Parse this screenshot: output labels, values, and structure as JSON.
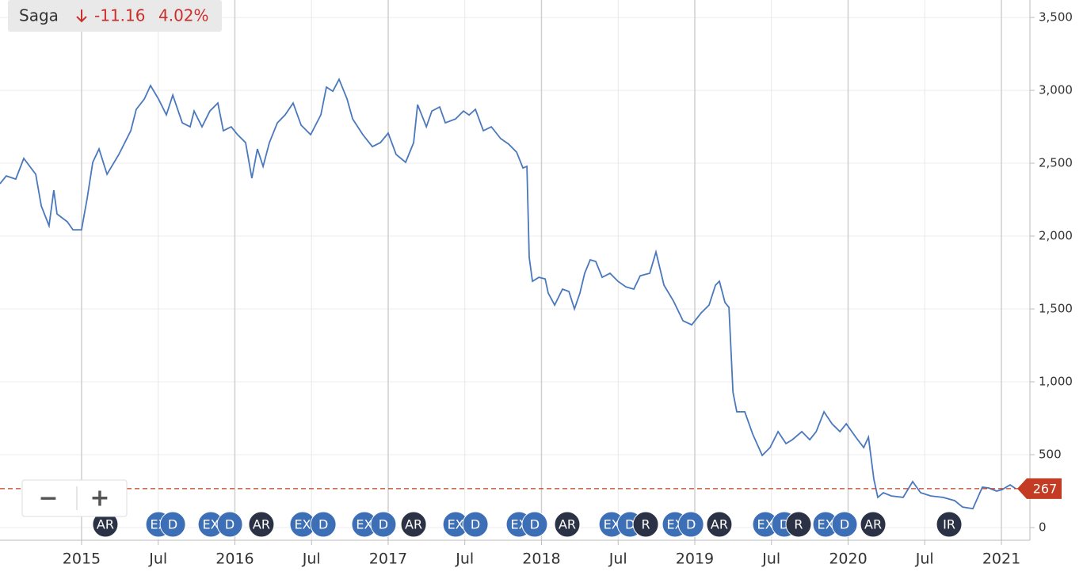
{
  "header": {
    "name": "Saga",
    "change": "-11.16",
    "change_pct": "4.02%"
  },
  "controls": {
    "zoom_out": "−",
    "zoom_in": "+"
  },
  "chart_data": {
    "type": "line",
    "xlim": [
      2014.468,
      2021.186
    ],
    "ylim": [
      -87,
      3620
    ],
    "xticks": [
      2015,
      {
        "value": 2015.5,
        "label": "Jul"
      },
      2016,
      {
        "value": 2016.5,
        "label": "Jul"
      },
      2017,
      {
        "value": 2017.5,
        "label": "Jul"
      },
      2018,
      {
        "value": 2018.5,
        "label": "Jul"
      },
      2019,
      {
        "value": 2019.5,
        "label": "Jul"
      },
      2020,
      {
        "value": 2020.5,
        "label": "Jul"
      },
      2021
    ],
    "yticks": [
      0,
      500,
      {
        "value": 1000,
        "label": "1,000"
      },
      {
        "value": 1500,
        "label": "1,500"
      },
      {
        "value": 2000,
        "label": "2,000"
      },
      {
        "value": 2500,
        "label": "2,500"
      },
      {
        "value": 3000,
        "label": "3,000"
      },
      {
        "value": 3500,
        "label": "3,500"
      }
    ],
    "grid": true,
    "last_price": 267,
    "last_price_color": "#c23b22",
    "series": [
      {
        "name": "Saga",
        "color": "#4a78bd",
        "x": [
          2014.468,
          2014.509,
          2014.571,
          2014.623,
          2014.701,
          2014.737,
          2014.788,
          2014.819,
          2014.84,
          2014.907,
          2014.944,
          2015.0,
          2015.037,
          2015.073,
          2015.114,
          2015.166,
          2015.243,
          2015.321,
          2015.357,
          2015.409,
          2015.45,
          2015.502,
          2015.553,
          2015.595,
          2015.657,
          2015.708,
          2015.734,
          2015.786,
          2015.837,
          2015.889,
          2015.925,
          2015.976,
          2016.018,
          2016.07,
          2016.111,
          2016.147,
          2016.184,
          2016.225,
          2016.277,
          2016.328,
          2016.38,
          2016.432,
          2016.494,
          2016.561,
          2016.597,
          2016.639,
          2016.68,
          2016.732,
          2016.768,
          2016.835,
          2016.897,
          2016.949,
          2017.0,
          2017.052,
          2017.114,
          2017.166,
          2017.192,
          2017.249,
          2017.285,
          2017.336,
          2017.373,
          2017.44,
          2017.491,
          2017.528,
          2017.569,
          2017.621,
          2017.673,
          2017.734,
          2017.786,
          2017.838,
          2017.879,
          2017.905,
          2017.92,
          2017.941,
          2017.983,
          2018.024,
          2018.044,
          2018.086,
          2018.137,
          2018.179,
          2018.215,
          2018.251,
          2018.282,
          2018.318,
          2018.354,
          2018.396,
          2018.447,
          2018.499,
          2018.55,
          2018.602,
          2018.644,
          2018.706,
          2018.747,
          2018.799,
          2018.861,
          2018.923,
          2018.98,
          2019.042,
          2019.093,
          2019.135,
          2019.161,
          2019.197,
          2019.223,
          2019.249,
          2019.274,
          2019.326,
          2019.378,
          2019.44,
          2019.491,
          2019.543,
          2019.595,
          2019.636,
          2019.698,
          2019.75,
          2019.792,
          2019.843,
          2019.895,
          2019.947,
          2019.988,
          2020.05,
          2020.102,
          2020.133,
          2020.168,
          2020.194,
          2020.23,
          2020.282,
          2020.359,
          2020.421,
          2020.473,
          2020.54,
          2020.618,
          2020.695,
          2020.747,
          2020.814,
          2020.876,
          2020.917,
          2020.969,
          2021.005,
          2021.057,
          2021.093
        ],
        "values": [
          2359,
          2413,
          2391,
          2533,
          2424,
          2207,
          2071,
          2315,
          2152,
          2098,
          2043,
          2043,
          2261,
          2506,
          2598,
          2424,
          2560,
          2723,
          2870,
          2940,
          3033,
          2940,
          2832,
          2967,
          2777,
          2750,
          2858,
          2750,
          2858,
          2913,
          2723,
          2750,
          2696,
          2641,
          2397,
          2598,
          2478,
          2641,
          2777,
          2832,
          2913,
          2761,
          2696,
          2832,
          3022,
          2994,
          3076,
          2940,
          2804,
          2696,
          2614,
          2641,
          2707,
          2560,
          2506,
          2641,
          2902,
          2750,
          2858,
          2886,
          2777,
          2804,
          2858,
          2831,
          2870,
          2723,
          2750,
          2669,
          2631,
          2576,
          2467,
          2478,
          1853,
          1690,
          1717,
          1706,
          1609,
          1527,
          1636,
          1620,
          1500,
          1609,
          1745,
          1837,
          1826,
          1717,
          1745,
          1690,
          1652,
          1636,
          1728,
          1745,
          1891,
          1663,
          1554,
          1419,
          1391,
          1473,
          1527,
          1663,
          1690,
          1544,
          1511,
          929,
          794,
          794,
          641,
          495,
          549,
          658,
          576,
          603,
          658,
          603,
          658,
          794,
          712,
          658,
          712,
          620,
          549,
          620,
          332,
          207,
          239,
          217,
          207,
          315,
          239,
          217,
          207,
          185,
          141,
          130,
          277,
          272,
          250,
          261,
          293,
          267
        ]
      }
    ],
    "events": [
      {
        "x": 2015.155,
        "label": "AR",
        "color": "#2b3245"
      },
      {
        "x": 2015.502,
        "label": "EX",
        "color": "#3d6fb6"
      },
      {
        "x": 2015.595,
        "label": "D",
        "color": "#3d6fb6"
      },
      {
        "x": 2015.843,
        "label": "EX",
        "color": "#3d6fb6"
      },
      {
        "x": 2015.967,
        "label": "D",
        "color": "#3d6fb6"
      },
      {
        "x": 2016.173,
        "label": "AR",
        "color": "#2b3245"
      },
      {
        "x": 2016.442,
        "label": "EX",
        "color": "#3d6fb6"
      },
      {
        "x": 2016.577,
        "label": "D",
        "color": "#3d6fb6"
      },
      {
        "x": 2016.845,
        "label": "EX",
        "color": "#3d6fb6"
      },
      {
        "x": 2016.969,
        "label": "D",
        "color": "#3d6fb6"
      },
      {
        "x": 2017.166,
        "label": "AR",
        "color": "#2b3245"
      },
      {
        "x": 2017.44,
        "label": "EX",
        "color": "#3d6fb6"
      },
      {
        "x": 2017.569,
        "label": "D",
        "color": "#3d6fb6"
      },
      {
        "x": 2017.853,
        "label": "EX",
        "color": "#3d6fb6"
      },
      {
        "x": 2017.956,
        "label": "D",
        "color": "#3d6fb6"
      },
      {
        "x": 2018.168,
        "label": "AR",
        "color": "#2b3245"
      },
      {
        "x": 2018.458,
        "label": "EX",
        "color": "#3d6fb6"
      },
      {
        "x": 2018.577,
        "label": "D",
        "color": "#3d6fb6"
      },
      {
        "x": 2018.68,
        "label": "R",
        "color": "#2b3245"
      },
      {
        "x": 2018.871,
        "label": "EX",
        "color": "#3d6fb6"
      },
      {
        "x": 2018.975,
        "label": "D",
        "color": "#3d6fb6"
      },
      {
        "x": 2019.16,
        "label": "AR",
        "color": "#2b3245"
      },
      {
        "x": 2019.46,
        "label": "EX",
        "color": "#3d6fb6"
      },
      {
        "x": 2019.584,
        "label": "D",
        "color": "#3d6fb6"
      },
      {
        "x": 2019.677,
        "label": "R",
        "color": "#2b3245"
      },
      {
        "x": 2019.853,
        "label": "EX",
        "color": "#3d6fb6"
      },
      {
        "x": 2019.977,
        "label": "D",
        "color": "#3d6fb6"
      },
      {
        "x": 2020.163,
        "label": "AR",
        "color": "#2b3245"
      },
      {
        "x": 2020.659,
        "label": "IR",
        "color": "#2b3245"
      }
    ]
  }
}
